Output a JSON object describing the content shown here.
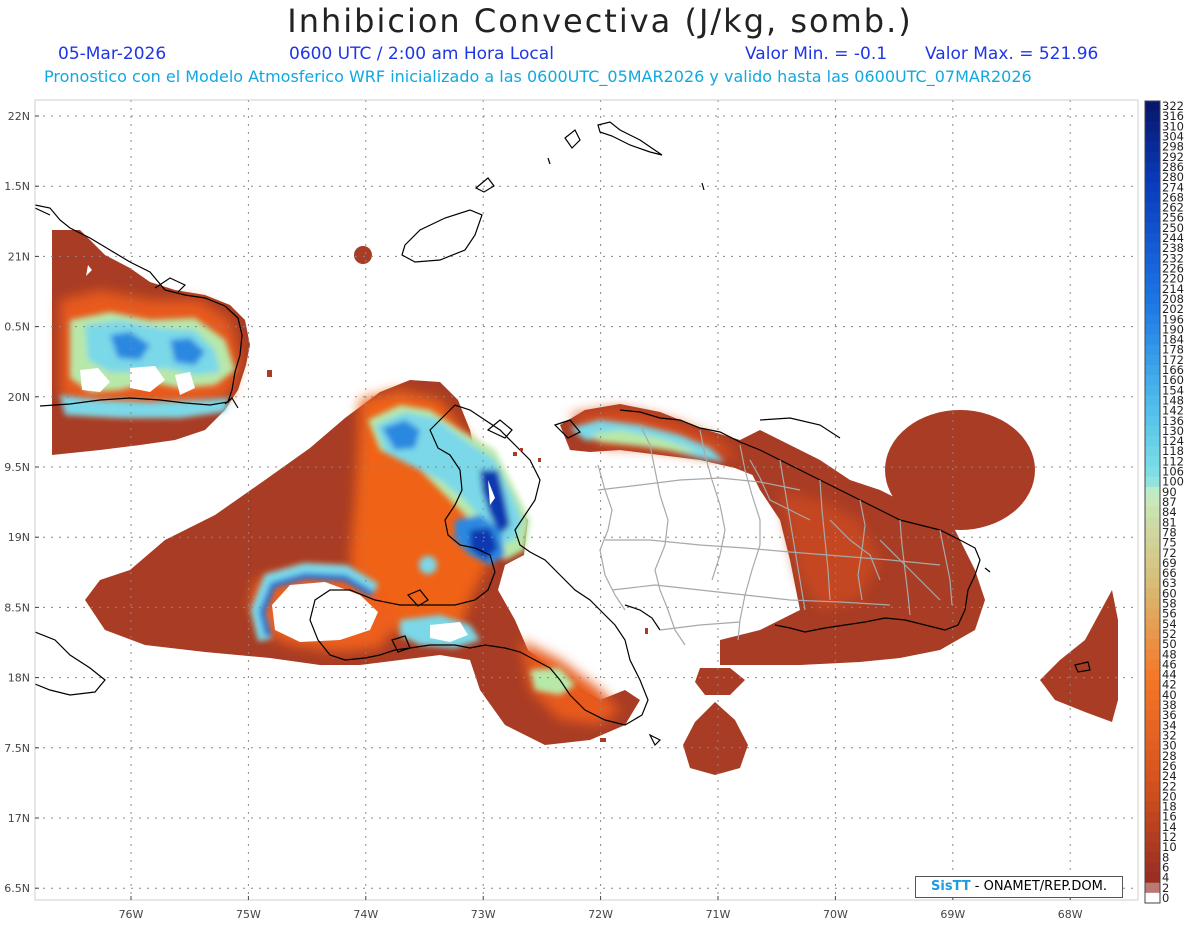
{
  "header": {
    "title": "Inhibicion Convectiva (J/kg, somb.)",
    "date": "05-Mar-2026",
    "time": "0600 UTC / 2:00 am Hora Local",
    "valmin": "Valor Min. = -0.1",
    "valmax": "Valor Max. = 521.96",
    "desc": "Pronostico con el Modelo Atmosferico WRF inicializado a las 0600UTC_05MAR2026 y valido hasta las  0600UTC_07MAR2026"
  },
  "axes": {
    "lat_labels": [
      "22N",
      "1.5N",
      "21N",
      "0.5N",
      "20N",
      "9.5N",
      "19N",
      "8.5N",
      "18N",
      "7.5N",
      "17N",
      "6.5N"
    ],
    "lon_labels": [
      "76W",
      "75W",
      "74W",
      "73W",
      "72W",
      "71W",
      "70W",
      "69W",
      "68W"
    ]
  },
  "colorbar": {
    "labels": [
      "322",
      "316",
      "310",
      "304",
      "298",
      "292",
      "286",
      "280",
      "274",
      "268",
      "262",
      "256",
      "250",
      "244",
      "238",
      "232",
      "226",
      "220",
      "214",
      "208",
      "202",
      "196",
      "190",
      "184",
      "178",
      "172",
      "166",
      "160",
      "154",
      "148",
      "142",
      "136",
      "130",
      "124",
      "118",
      "112",
      "106",
      "100",
      "90",
      "87",
      "84",
      "81",
      "78",
      "75",
      "72",
      "69",
      "66",
      "63",
      "60",
      "58",
      "56",
      "54",
      "52",
      "50",
      "48",
      "46",
      "44",
      "42",
      "40",
      "38",
      "36",
      "34",
      "32",
      "30",
      "28",
      "26",
      "24",
      "22",
      "20",
      "18",
      "16",
      "14",
      "12",
      "10",
      "8",
      "6",
      "4",
      "2",
      "0"
    ]
  },
  "colors": {
    "base_brown": "#a83c24",
    "orange": "#f06218",
    "light_green": "#b8e8a8",
    "cyan": "#7ad8e8",
    "blue": "#2a88e0",
    "dark_blue": "#0838b0"
  },
  "credit": {
    "sis": "SisTT",
    "org": " - ONAMET/REP.DOM."
  }
}
